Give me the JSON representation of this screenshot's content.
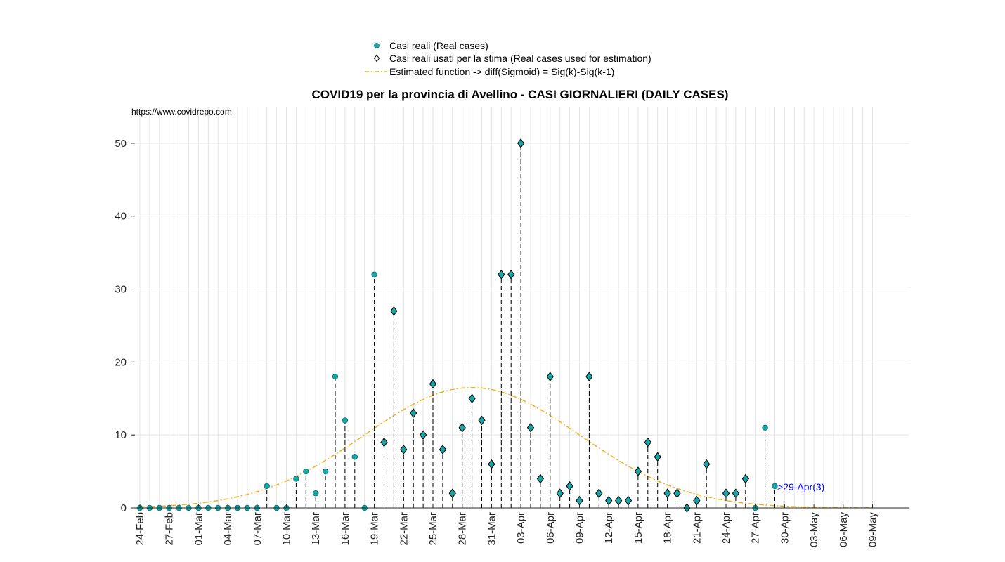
{
  "chart_data": {
    "type": "scatter",
    "title": "COVID19 per la provincia di Avellino - CASI GIORNALIERI (DAILY CASES)",
    "source_text": "https://www.covidrepo.com",
    "annotation": ">29-Apr(3)",
    "ylim": [
      0,
      55
    ],
    "yticks": [
      0,
      10,
      20,
      30,
      40,
      50
    ],
    "x_start_date": "24-Feb",
    "x_end_date": "09-May",
    "xtick_labels": [
      "24-Feb",
      "27-Feb",
      "01-Mar",
      "04-Mar",
      "07-Mar",
      "10-Mar",
      "13-Mar",
      "16-Mar",
      "19-Mar",
      "22-Mar",
      "25-Mar",
      "28-Mar",
      "31-Mar",
      "03-Apr",
      "06-Apr",
      "09-Apr",
      "12-Apr",
      "15-Apr",
      "18-Apr",
      "21-Apr",
      "24-Apr",
      "27-Apr",
      "30-Apr",
      "03-May",
      "06-May",
      "09-May"
    ],
    "grid": true,
    "legend_position": "top-center",
    "legend": [
      {
        "label": "Casi reali (Real cases)",
        "marker": "circle"
      },
      {
        "label": "Casi reali usati per la stima (Real cases used for estimation)",
        "marker": "diamond"
      },
      {
        "label": "Estimated function -> diff(Sigmoid) = Sig(k)-Sig(k-1)",
        "marker": "dashdot-line"
      }
    ],
    "colors": {
      "marker": "#17a5a5",
      "curve": "#edb120",
      "annotation": "#0000ff",
      "stem": "#000000"
    },
    "real_cases": [
      {
        "date": "24-Feb",
        "value": 0
      },
      {
        "date": "25-Feb",
        "value": 0
      },
      {
        "date": "26-Feb",
        "value": 0
      },
      {
        "date": "27-Feb",
        "value": 0
      },
      {
        "date": "28-Feb",
        "value": 0
      },
      {
        "date": "29-Feb",
        "value": 0
      },
      {
        "date": "01-Mar",
        "value": 0
      },
      {
        "date": "02-Mar",
        "value": 0
      },
      {
        "date": "03-Mar",
        "value": 0
      },
      {
        "date": "04-Mar",
        "value": 0
      },
      {
        "date": "05-Mar",
        "value": 0
      },
      {
        "date": "06-Mar",
        "value": 0
      },
      {
        "date": "07-Mar",
        "value": 0
      },
      {
        "date": "08-Mar",
        "value": 3
      },
      {
        "date": "09-Mar",
        "value": 0
      },
      {
        "date": "10-Mar",
        "value": 0
      },
      {
        "date": "11-Mar",
        "value": 4
      },
      {
        "date": "12-Mar",
        "value": 5
      },
      {
        "date": "13-Mar",
        "value": 2
      },
      {
        "date": "14-Mar",
        "value": 5
      },
      {
        "date": "15-Mar",
        "value": 18
      },
      {
        "date": "16-Mar",
        "value": 12
      },
      {
        "date": "17-Mar",
        "value": 7
      },
      {
        "date": "18-Mar",
        "value": 0
      },
      {
        "date": "19-Mar",
        "value": 32
      },
      {
        "date": "27-Apr",
        "value": 0
      },
      {
        "date": "28-Apr",
        "value": 11
      },
      {
        "date": "29-Apr",
        "value": 3
      }
    ],
    "estimation_cases": [
      {
        "date": "20-Mar",
        "value": 9
      },
      {
        "date": "21-Mar",
        "value": 27
      },
      {
        "date": "22-Mar",
        "value": 8
      },
      {
        "date": "23-Mar",
        "value": 13
      },
      {
        "date": "24-Mar",
        "value": 10
      },
      {
        "date": "25-Mar",
        "value": 17
      },
      {
        "date": "26-Mar",
        "value": 8
      },
      {
        "date": "27-Mar",
        "value": 2
      },
      {
        "date": "28-Mar",
        "value": 11
      },
      {
        "date": "29-Mar",
        "value": 15
      },
      {
        "date": "30-Mar",
        "value": 12
      },
      {
        "date": "31-Mar",
        "value": 6
      },
      {
        "date": "01-Apr",
        "value": 32
      },
      {
        "date": "02-Apr",
        "value": 32
      },
      {
        "date": "03-Apr",
        "value": 50
      },
      {
        "date": "04-Apr",
        "value": 11
      },
      {
        "date": "05-Apr",
        "value": 4
      },
      {
        "date": "06-Apr",
        "value": 18
      },
      {
        "date": "07-Apr",
        "value": 2
      },
      {
        "date": "08-Apr",
        "value": 3
      },
      {
        "date": "09-Apr",
        "value": 1
      },
      {
        "date": "10-Apr",
        "value": 18
      },
      {
        "date": "11-Apr",
        "value": 2
      },
      {
        "date": "12-Apr",
        "value": 1
      },
      {
        "date": "13-Apr",
        "value": 1
      },
      {
        "date": "14-Apr",
        "value": 1
      },
      {
        "date": "15-Apr",
        "value": 5
      },
      {
        "date": "16-Apr",
        "value": 9
      },
      {
        "date": "17-Apr",
        "value": 7
      },
      {
        "date": "18-Apr",
        "value": 2
      },
      {
        "date": "19-Apr",
        "value": 2
      },
      {
        "date": "20-Apr",
        "value": 0
      },
      {
        "date": "21-Apr",
        "value": 1
      },
      {
        "date": "22-Apr",
        "value": 6
      },
      {
        "date": "24-Apr",
        "value": 2
      },
      {
        "date": "25-Apr",
        "value": 2
      },
      {
        "date": "26-Apr",
        "value": 4
      }
    ],
    "estimated_curve": {
      "peak_date": "29-Mar",
      "peak_value": 16.5,
      "sigma_days": 11
    }
  }
}
